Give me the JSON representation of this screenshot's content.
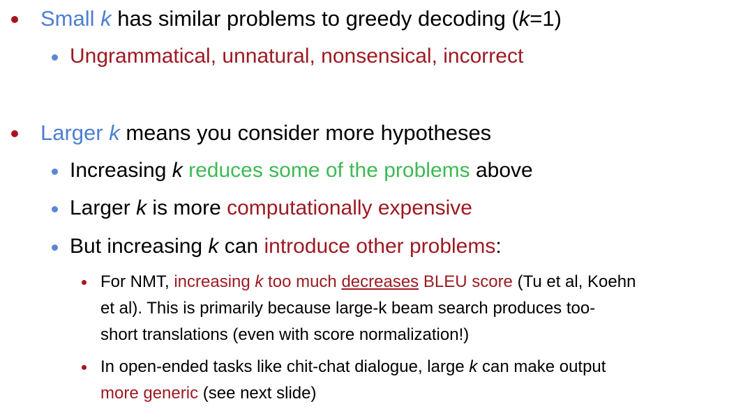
{
  "bullet1": {
    "small": "Small",
    "k": "k",
    "rest_a": " has similar problems to greedy decoding (",
    "k2": "k",
    "rest_b": "=1)",
    "sub1": "Ungrammatical, unnatural, nonsensical, incorrect"
  },
  "bullet2": {
    "larger": "Larger",
    "k": "k",
    "rest": " means you consider more hypotheses",
    "sub1": {
      "a": "Increasing ",
      "k": "k",
      "green": " reduces some of the problems",
      "b": " above"
    },
    "sub2": {
      "a": "Larger ",
      "k": "k",
      "b": " is more ",
      "red": "computationally expensive"
    },
    "sub3": {
      "a": "But increasing ",
      "k": "k",
      "b": " can ",
      "red": "introduce other problems",
      "c": ":"
    },
    "subsub1": {
      "line1_a": "For NMT, ",
      "line1_red": "increasing ",
      "line1_k": "k",
      "line1_red2": " too much ",
      "line1_ul": "decreases",
      "line1_red3": " BLEU score",
      "line1_b": " (Tu et al, Koehn",
      "line2": "et al). This is primarily because large-k beam search produces too-",
      "line3": "short translations (even with score normalization!)"
    },
    "subsub2": {
      "line1_a": "In open-ended tasks like chit-chat dialogue, large ",
      "line1_k": "k",
      "line1_b": " can make output",
      "line2_red": "more generic",
      "line2_b": " (see next slide)"
    }
  }
}
